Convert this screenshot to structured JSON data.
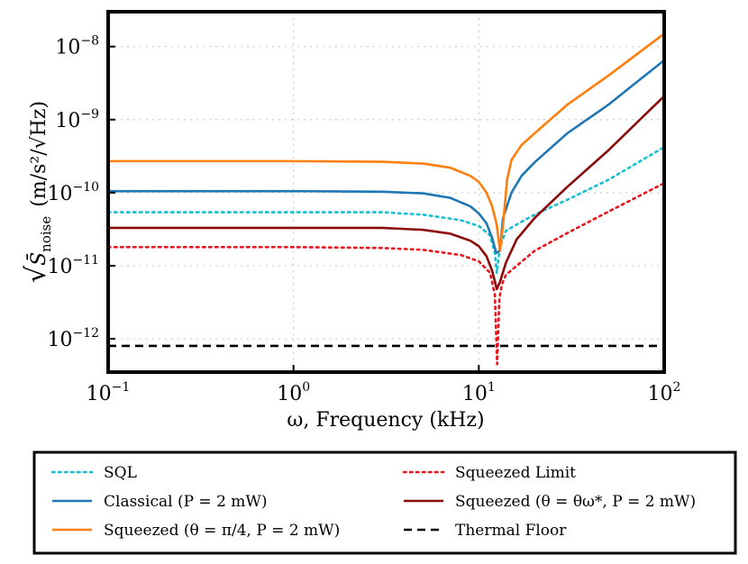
{
  "chart_data": {
    "type": "line",
    "x_scale": "log",
    "y_scale": "log",
    "xlim": [
      0.1,
      100
    ],
    "ylim": [
      3.5e-13,
      3e-08
    ],
    "grid": true,
    "xlabel": "ω, Frequency (kHz)",
    "ylabel": {
      "sqrt_symbol": "√",
      "symbol": "S̄",
      "subscript": "noise",
      "units": "(m/s²/√Hz)"
    },
    "x_ticks": [
      {
        "value": 0.1,
        "base": "10",
        "exp": "−1"
      },
      {
        "value": 1,
        "base": "10",
        "exp": "0"
      },
      {
        "value": 10,
        "base": "10",
        "exp": "1"
      },
      {
        "value": 100,
        "base": "10",
        "exp": "2"
      }
    ],
    "y_ticks": [
      {
        "value": 1e-12,
        "base": "10",
        "exp": "−12"
      },
      {
        "value": 1e-11,
        "base": "10",
        "exp": "−11"
      },
      {
        "value": 1e-10,
        "base": "10",
        "exp": "−10"
      },
      {
        "value": 1e-09,
        "base": "10",
        "exp": "−9"
      },
      {
        "value": 1e-08,
        "base": "10",
        "exp": "−8"
      }
    ],
    "series": [
      {
        "name": "SQL",
        "label": "SQL",
        "color": "#17becf",
        "style": "dotted",
        "x": [
          0.1,
          1,
          3,
          5,
          8,
          10,
          11.5,
          12.2,
          12.5,
          13,
          14,
          17,
          20,
          30,
          50,
          100
        ],
        "y": [
          5.4e-11,
          5.4e-11,
          5.4e-11,
          5e-11,
          4.2e-11,
          3.5e-11,
          2.6e-11,
          1.5e-11,
          8e-12,
          1.8e-11,
          3e-11,
          4e-11,
          5e-11,
          8e-11,
          1.5e-10,
          4.2e-10
        ]
      },
      {
        "name": "Classical",
        "label": "Classical (P = 2 mW)",
        "color": "#1f77b4",
        "style": "solid",
        "x": [
          0.1,
          1,
          3,
          5,
          7,
          9,
          10,
          11,
          11.8,
          12.4,
          13.0,
          13.5,
          15,
          17,
          20,
          30,
          50,
          100
        ],
        "y": [
          1.05e-10,
          1.05e-10,
          1.03e-10,
          9.8e-11,
          8.5e-11,
          6.5e-11,
          5.2e-11,
          3.8e-11,
          2.4e-11,
          1.5e-11,
          1.6e-11,
          4.5e-11,
          1e-10,
          1.7e-10,
          2.6e-10,
          6.5e-10,
          1.6e-09,
          6.5e-09
        ]
      },
      {
        "name": "Squeezed pi/4",
        "label": "Squeezed (θ = π/4, P = 2 mW)",
        "color": "#ff7f0e",
        "style": "solid",
        "x": [
          0.1,
          1,
          3,
          5,
          7,
          9,
          10,
          11,
          11.8,
          12.5,
          13.0,
          13.5,
          14.2,
          15,
          17,
          20,
          30,
          50,
          100
        ],
        "y": [
          2.7e-10,
          2.7e-10,
          2.65e-10,
          2.5e-10,
          2.2e-10,
          1.7e-10,
          1.4e-10,
          1e-10,
          6.5e-11,
          3.6e-11,
          1.6e-11,
          3.5e-11,
          1.5e-10,
          2.8e-10,
          4.5e-10,
          6.5e-10,
          1.6e-09,
          4e-09,
          1.5e-08
        ]
      },
      {
        "name": "Squeezed Limit",
        "label": "Squeezed Limit",
        "color": "#e8141c",
        "style": "dotted",
        "x": [
          0.1,
          1,
          3,
          5,
          8,
          10,
          11.5,
          12.2,
          12.55,
          12.9,
          13.3,
          14,
          16,
          20,
          30,
          50,
          100
        ],
        "y": [
          1.8e-11,
          1.8e-11,
          1.75e-11,
          1.65e-11,
          1.4e-11,
          1.15e-11,
          8e-12,
          4e-12,
          4.5e-13,
          3.5e-12,
          5.5e-12,
          7.5e-12,
          1e-11,
          1.6e-11,
          2.8e-11,
          5.5e-11,
          1.35e-10
        ]
      },
      {
        "name": "Squeezed optimal",
        "label": "Squeezed (θ = θω*, P = 2 mW)",
        "color": "#8b0a0a",
        "style": "solid",
        "x": [
          0.1,
          1,
          3,
          5,
          7,
          9,
          10,
          11,
          11.8,
          12.5,
          13.0,
          14,
          16,
          20,
          30,
          50,
          100
        ],
        "y": [
          3.3e-11,
          3.3e-11,
          3.3e-11,
          3.1e-11,
          2.75e-11,
          2.2e-11,
          1.85e-11,
          1.35e-11,
          8.5e-12,
          4.8e-12,
          6e-12,
          1.1e-11,
          2.3e-11,
          4.5e-11,
          1.2e-10,
          3.8e-10,
          2.1e-09
        ]
      },
      {
        "name": "Thermal Floor",
        "label": "Thermal Floor",
        "color": "#000000",
        "style": "dashed",
        "x": [
          0.1,
          100
        ],
        "y": [
          8e-13,
          8e-13
        ]
      }
    ],
    "legend": {
      "placement": "below",
      "entries": [
        {
          "series": 0,
          "text": "SQL"
        },
        {
          "series": 1,
          "text": "Classical (P = 2 mW)"
        },
        {
          "series": 2,
          "text": "Squeezed (θ = π/4, P = 2 mW)"
        },
        {
          "series": 3,
          "text": "Squeezed Limit"
        },
        {
          "series": 4,
          "text": "Squeezed (θ = θω*, P = 2 mW)"
        },
        {
          "series": 5,
          "text": "Thermal Floor"
        }
      ]
    }
  }
}
